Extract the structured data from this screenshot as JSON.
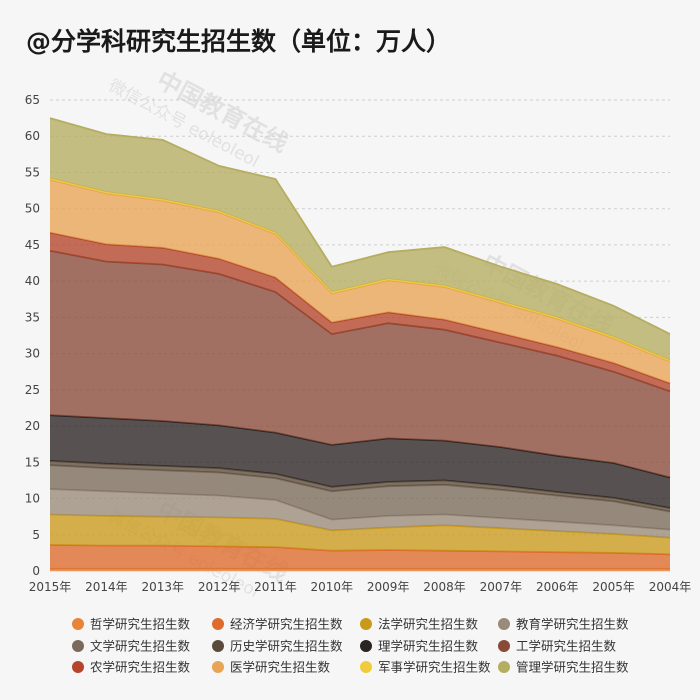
{
  "title": "@分学科研究生招生数（单位：万人）",
  "chart_data": {
    "type": "area",
    "stacked": true,
    "x": [
      "2015年",
      "2014年",
      "2013年",
      "2012年",
      "2011年",
      "2010年",
      "2009年",
      "2008年",
      "2007年",
      "2006年",
      "2005年",
      "2004年"
    ],
    "ylim": [
      0,
      65
    ],
    "yticks": [
      0,
      5,
      10,
      15,
      20,
      25,
      30,
      35,
      40,
      45,
      50,
      55,
      60,
      65
    ],
    "grid": "horizontal-dashed",
    "legend_position": "bottom",
    "series": [
      {
        "name": "哲学研究生招生数",
        "color": "#e8833a",
        "values": [
          0.3,
          0.3,
          0.3,
          0.3,
          0.3,
          0.3,
          0.3,
          0.3,
          0.3,
          0.3,
          0.3,
          0.3
        ]
      },
      {
        "name": "经济学研究生招生数",
        "color": "#de6a2b",
        "values": [
          3.3,
          3.2,
          3.2,
          3.1,
          3.0,
          2.5,
          2.6,
          2.5,
          2.4,
          2.3,
          2.2,
          2.0
        ]
      },
      {
        "name": "法学研究生招生数",
        "color": "#c99a1a",
        "values": [
          4.2,
          4.1,
          4.0,
          4.0,
          3.9,
          2.8,
          3.1,
          3.5,
          3.2,
          2.9,
          2.6,
          2.3
        ]
      },
      {
        "name": "教育学研究生招生数",
        "color": "#9a8a7a",
        "values": [
          3.5,
          3.4,
          3.2,
          3.0,
          2.6,
          1.5,
          1.6,
          1.5,
          1.4,
          1.3,
          1.2,
          1.1
        ]
      },
      {
        "name": "文学研究生招生数",
        "color": "#7a6a5a",
        "values": [
          3.3,
          3.2,
          3.2,
          3.2,
          3.0,
          3.9,
          4.1,
          4.1,
          3.9,
          3.6,
          3.3,
          2.5
        ]
      },
      {
        "name": "历史学研究生招生数",
        "color": "#5a4a3a",
        "values": [
          0.6,
          0.6,
          0.6,
          0.6,
          0.6,
          0.6,
          0.6,
          0.6,
          0.6,
          0.5,
          0.5,
          0.5
        ]
      },
      {
        "name": "理学研究生招生数",
        "color": "#2a2422",
        "values": [
          6.3,
          6.3,
          6.2,
          5.9,
          5.7,
          5.8,
          6.0,
          5.5,
          5.3,
          5.0,
          4.8,
          4.2
        ]
      },
      {
        "name": "工学研究生招生数",
        "color": "#8a4a38",
        "values": [
          22.7,
          21.6,
          21.6,
          20.9,
          19.4,
          15.3,
          15.9,
          15.3,
          14.4,
          13.8,
          12.6,
          11.9
        ]
      },
      {
        "name": "农学研究生招生数",
        "color": "#b4452a",
        "values": [
          2.5,
          2.4,
          2.3,
          2.1,
          2.0,
          1.6,
          1.5,
          1.4,
          1.3,
          1.2,
          1.2,
          1.1
        ]
      },
      {
        "name": "医学研究生招生数",
        "color": "#e8a455",
        "values": [
          7.3,
          7.0,
          6.5,
          6.4,
          6.0,
          4.0,
          4.4,
          4.5,
          4.2,
          3.9,
          3.4,
          3.0
        ]
      },
      {
        "name": "军事学研究生招生数",
        "color": "#f0cc3c",
        "values": [
          0.2,
          0.2,
          0.2,
          0.2,
          0.2,
          0.2,
          0.2,
          0.2,
          0.2,
          0.2,
          0.2,
          0.2
        ]
      },
      {
        "name": "管理学研究生招生数",
        "color": "#b5ad60",
        "values": [
          8.3,
          8.0,
          8.2,
          6.2,
          7.4,
          3.5,
          3.7,
          5.3,
          4.8,
          4.6,
          4.3,
          3.6
        ]
      }
    ]
  }
}
